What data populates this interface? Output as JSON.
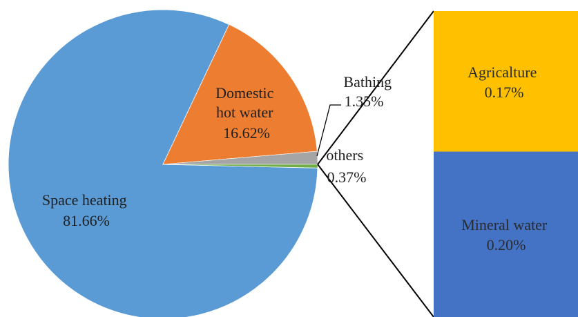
{
  "chart_data": {
    "type": "pie",
    "title": "",
    "pie": {
      "slices": [
        {
          "name_lines": [
            "Space heating"
          ],
          "value": 81.66,
          "value_label": "81.66%",
          "color": "#5b9bd5"
        },
        {
          "name_lines": [
            "Domestic",
            "hot water"
          ],
          "value": 16.62,
          "value_label": "16.62%",
          "color": "#ed7d31"
        },
        {
          "name_lines": [
            "Bathing"
          ],
          "value": 1.35,
          "value_label": "1.35%",
          "color": "#a5a5a5"
        },
        {
          "name_lines": [
            "others"
          ],
          "value": 0.37,
          "value_label": "0.37%",
          "color": "#70ad47"
        }
      ]
    },
    "breakdown_of": "others",
    "breakdown_bar": {
      "segments": [
        {
          "name": "Agricalture",
          "value": 0.17,
          "value_label": "0.17%",
          "color": "#ffc000"
        },
        {
          "name": "Mineral water",
          "value": 0.2,
          "value_label": "0.20%",
          "color": "#4472c4"
        }
      ]
    },
    "legend": "none"
  }
}
